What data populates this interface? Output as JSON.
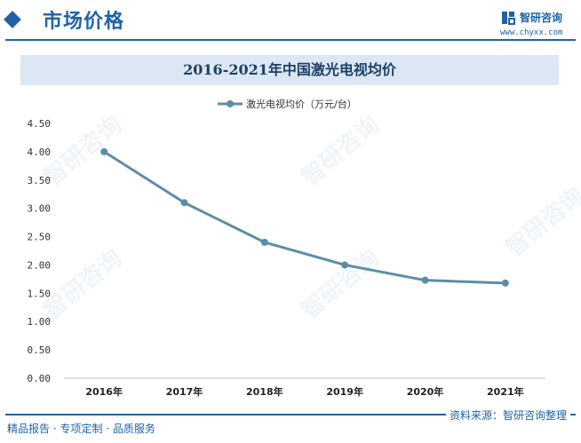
{
  "header": {
    "title": "市场价格"
  },
  "brand": {
    "name": "智研咨询",
    "url": "www.chyxx.com"
  },
  "footer": {
    "left_text": "精品报告 · 专项定制 · 品质服务",
    "source_text": "资料来源：智研咨询整理"
  },
  "watermark": {
    "text": "智研咨询"
  },
  "colors": {
    "accent": "#1e63a8",
    "line": "#5b8ea6",
    "title_band": "#dbe8f3"
  },
  "chart_data": {
    "type": "line",
    "title": "2016-2021年中国激光电视均价",
    "categories": [
      "2016年",
      "2017年",
      "2018年",
      "2019年",
      "2020年",
      "2021年"
    ],
    "series": [
      {
        "name": "激光电视均价（万元/台）",
        "values": [
          4.0,
          3.1,
          2.4,
          2.0,
          1.73,
          1.68
        ]
      }
    ],
    "ylim": [
      0,
      4.5
    ],
    "yticks": [
      "0.00",
      "0.50",
      "1.00",
      "1.50",
      "2.00",
      "2.50",
      "3.00",
      "3.50",
      "4.00",
      "4.50"
    ],
    "grid": false,
    "legend_position": "top-center",
    "markers": true
  }
}
